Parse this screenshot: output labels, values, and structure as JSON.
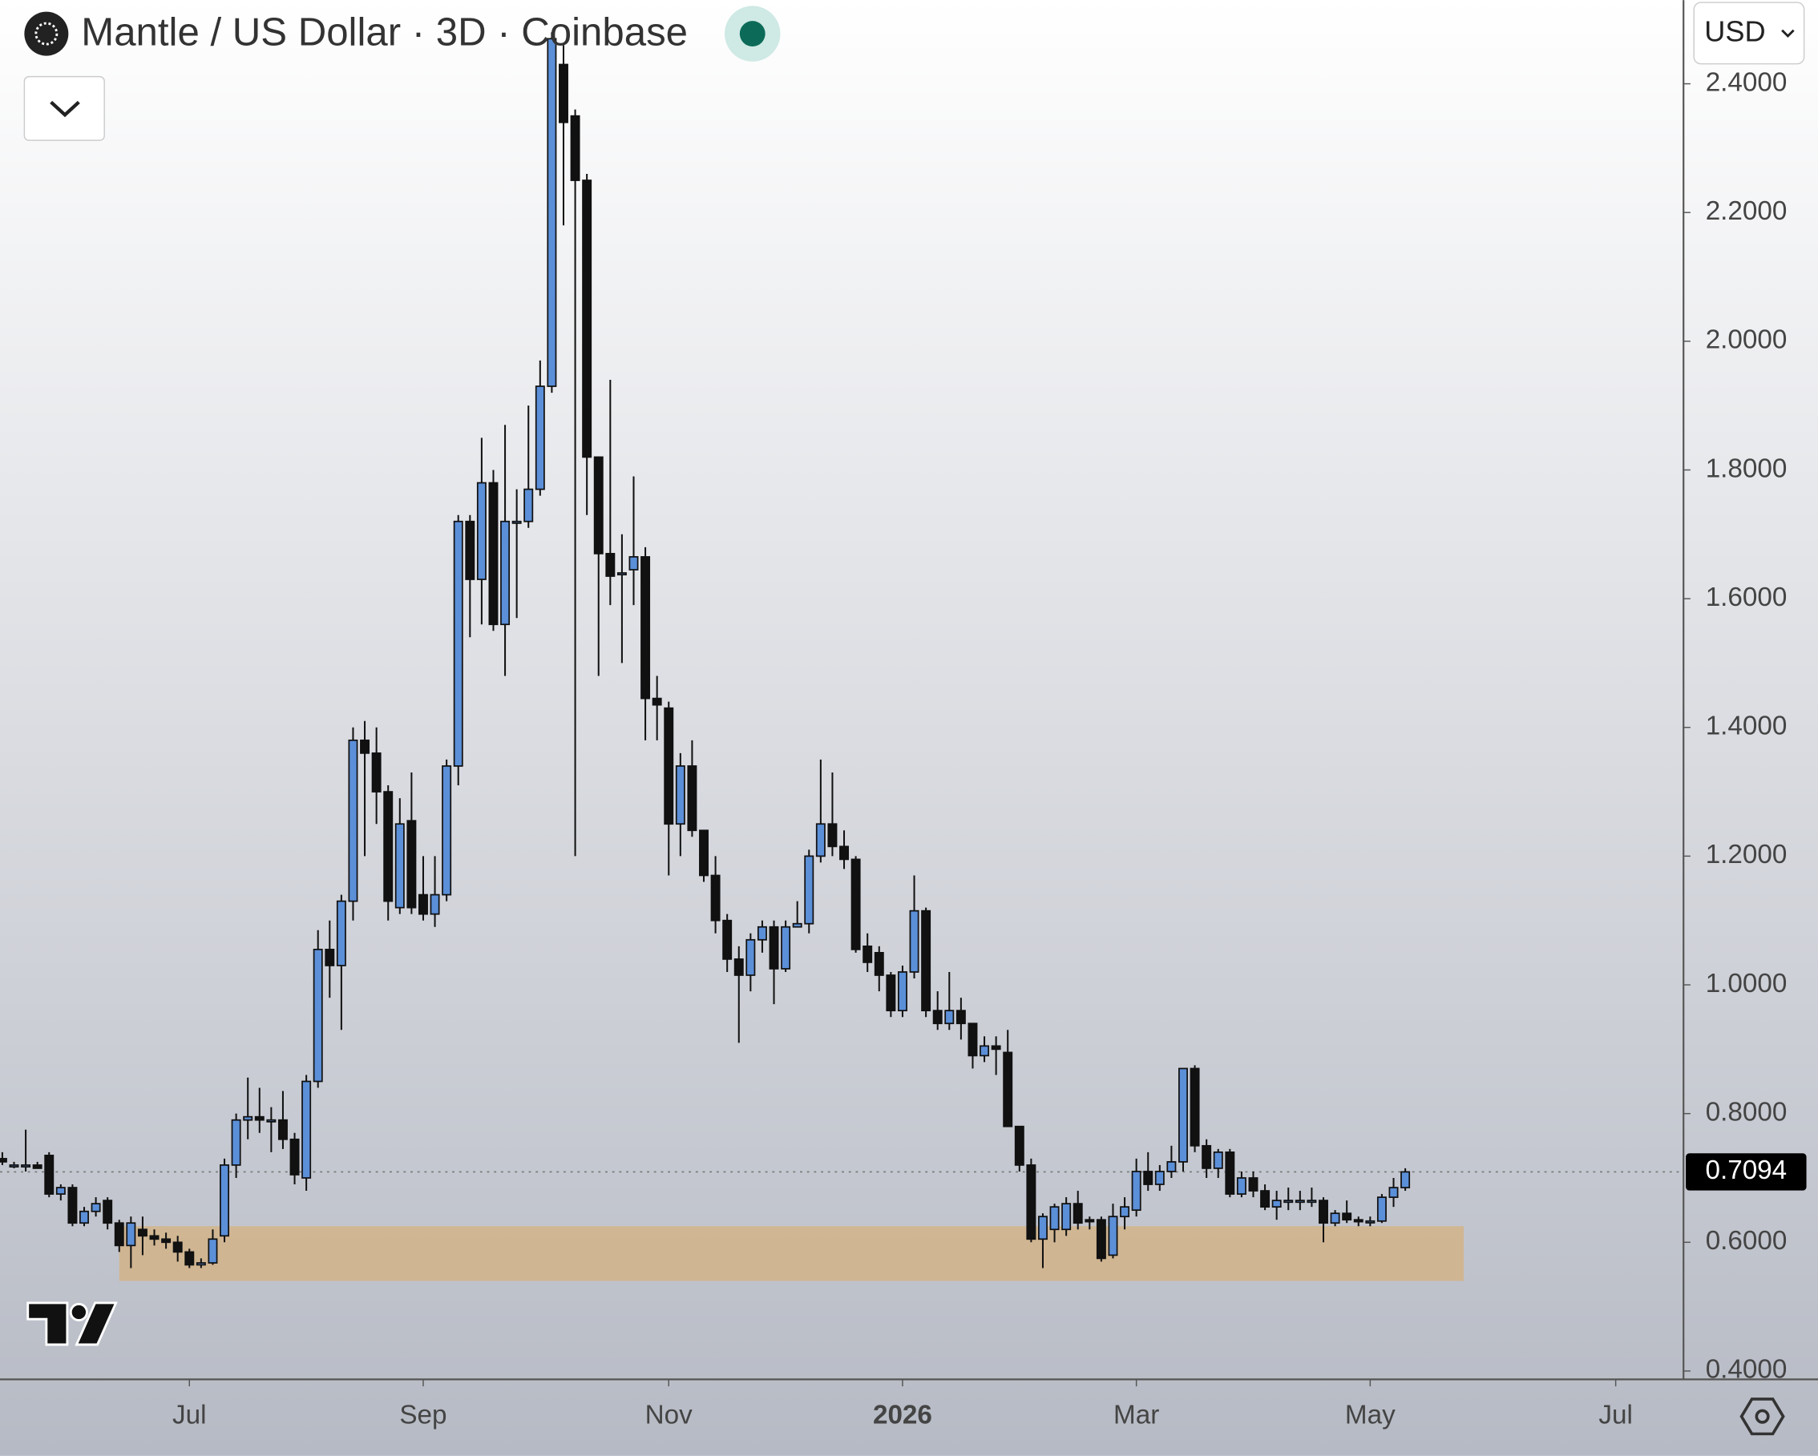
{
  "chart_data": {
    "type": "candlestick",
    "title": "Mantle / US Dollar · 3D · Coinbase",
    "currency": "USD",
    "up_color": "#5b8fd8",
    "down_color": "#111111",
    "open": [
      0.73,
      0.72,
      0.72,
      0.72,
      0.735,
      0.675,
      0.685,
      0.63,
      0.648,
      0.665,
      0.63,
      0.595,
      0.62,
      0.61,
      0.605,
      0.6,
      0.585,
      0.565,
      0.568,
      0.61,
      0.72,
      0.79,
      0.795,
      0.79,
      0.79,
      0.76,
      0.7,
      0.85,
      1.055,
      1.03,
      1.13,
      1.38,
      1.36,
      1.3,
      1.12,
      1.255,
      1.14,
      1.11,
      1.14,
      1.34,
      1.72,
      1.63,
      1.78,
      1.56,
      1.72,
      1.72,
      1.77,
      1.93,
      2.43,
      2.35,
      2.25,
      1.82,
      1.67,
      1.64,
      1.645,
      1.665,
      1.445,
      1.43,
      1.25,
      1.34,
      1.24,
      1.17,
      1.1,
      1.04,
      1.015,
      1.07,
      1.09,
      1.025,
      1.09,
      1.095,
      1.2,
      1.25,
      1.215,
      1.195,
      1.06,
      1.05,
      1.015,
      0.96,
      1.02,
      1.115,
      0.96,
      0.94,
      0.96,
      0.94,
      0.89,
      0.905,
      0.895,
      0.78,
      0.72,
      0.605,
      0.62,
      0.62,
      0.66,
      0.635,
      0.635,
      0.58,
      0.64,
      0.65,
      0.71,
      0.69,
      0.71,
      0.725,
      0.87,
      0.75,
      0.715,
      0.74,
      0.675,
      0.7,
      0.68,
      0.655,
      0.665,
      0.665,
      0.665,
      0.665,
      0.63,
      0.645,
      0.635,
      0.632,
      0.633,
      0.67,
      0.685
    ],
    "high": [
      0.74,
      0.725,
      0.775,
      0.725,
      0.74,
      0.69,
      0.69,
      0.655,
      0.67,
      0.67,
      0.635,
      0.64,
      0.64,
      0.62,
      0.615,
      0.61,
      0.59,
      0.575,
      0.62,
      0.73,
      0.8,
      0.856,
      0.84,
      0.81,
      0.835,
      0.77,
      0.86,
      1.085,
      1.1,
      1.14,
      1.4,
      1.41,
      1.4,
      1.31,
      1.29,
      1.33,
      1.2,
      1.2,
      1.35,
      1.73,
      1.73,
      1.85,
      1.8,
      1.87,
      1.77,
      1.9,
      1.97,
      2.48,
      2.46,
      2.36,
      2.26,
      1.82,
      1.94,
      1.7,
      1.79,
      1.68,
      1.48,
      1.44,
      1.36,
      1.38,
      1.24,
      1.2,
      1.11,
      1.06,
      1.08,
      1.1,
      1.1,
      1.1,
      1.13,
      1.21,
      1.35,
      1.33,
      1.24,
      1.2,
      1.08,
      1.06,
      1.02,
      1.03,
      1.17,
      1.12,
      0.99,
      1.02,
      0.98,
      0.94,
      0.92,
      0.92,
      0.93,
      0.78,
      0.73,
      0.645,
      0.66,
      0.67,
      0.68,
      0.64,
      0.64,
      0.66,
      0.67,
      0.73,
      0.74,
      0.72,
      0.75,
      0.87,
      0.875,
      0.76,
      0.745,
      0.745,
      0.71,
      0.71,
      0.69,
      0.68,
      0.685,
      0.68,
      0.685,
      0.67,
      0.65,
      0.665,
      0.64,
      0.64,
      0.675,
      0.7,
      0.715
    ],
    "low": [
      0.72,
      0.715,
      0.71,
      0.715,
      0.67,
      0.665,
      0.625,
      0.625,
      0.64,
      0.62,
      0.585,
      0.56,
      0.58,
      0.595,
      0.59,
      0.57,
      0.56,
      0.56,
      0.565,
      0.6,
      0.7,
      0.76,
      0.77,
      0.74,
      0.745,
      0.69,
      0.68,
      0.84,
      0.98,
      0.93,
      1.1,
      1.2,
      1.25,
      1.1,
      1.11,
      1.11,
      1.1,
      1.09,
      1.13,
      1.31,
      1.54,
      1.56,
      1.55,
      1.48,
      1.57,
      1.71,
      1.76,
      1.92,
      2.18,
      1.2,
      1.73,
      1.48,
      1.59,
      1.5,
      1.59,
      1.38,
      1.38,
      1.17,
      1.2,
      1.23,
      1.16,
      1.08,
      1.02,
      0.91,
      0.99,
      1.05,
      0.97,
      1.02,
      1.09,
      1.08,
      1.19,
      1.2,
      1.18,
      1.05,
      1.02,
      0.99,
      0.95,
      0.95,
      1.01,
      0.95,
      0.93,
      0.93,
      0.915,
      0.87,
      0.88,
      0.86,
      0.78,
      0.71,
      0.6,
      0.56,
      0.6,
      0.61,
      0.62,
      0.62,
      0.57,
      0.575,
      0.62,
      0.64,
      0.68,
      0.68,
      0.7,
      0.71,
      0.74,
      0.7,
      0.7,
      0.67,
      0.67,
      0.67,
      0.65,
      0.635,
      0.65,
      0.65,
      0.655,
      0.6,
      0.625,
      0.63,
      0.625,
      0.625,
      0.63,
      0.655,
      0.68
    ],
    "close": [
      0.725,
      0.72,
      0.72,
      0.715,
      0.675,
      0.685,
      0.63,
      0.648,
      0.66,
      0.63,
      0.595,
      0.63,
      0.61,
      0.605,
      0.6,
      0.585,
      0.565,
      0.568,
      0.605,
      0.72,
      0.79,
      0.795,
      0.79,
      0.79,
      0.76,
      0.705,
      0.85,
      1.055,
      1.03,
      1.13,
      1.38,
      1.36,
      1.3,
      1.13,
      1.25,
      1.12,
      1.11,
      1.14,
      1.34,
      1.72,
      1.63,
      1.78,
      1.56,
      1.72,
      1.72,
      1.77,
      1.93,
      2.47,
      2.34,
      2.25,
      1.82,
      1.67,
      1.635,
      1.64,
      1.665,
      1.445,
      1.435,
      1.25,
      1.34,
      1.24,
      1.17,
      1.1,
      1.04,
      1.015,
      1.07,
      1.09,
      1.025,
      1.09,
      1.095,
      1.2,
      1.25,
      1.215,
      1.195,
      1.055,
      1.035,
      1.015,
      0.96,
      1.02,
      1.115,
      0.96,
      0.94,
      0.96,
      0.94,
      0.89,
      0.905,
      0.9,
      0.78,
      0.72,
      0.605,
      0.64,
      0.655,
      0.66,
      0.63,
      0.632,
      0.575,
      0.64,
      0.655,
      0.71,
      0.69,
      0.71,
      0.725,
      0.87,
      0.75,
      0.715,
      0.74,
      0.675,
      0.7,
      0.68,
      0.655,
      0.665,
      0.665,
      0.665,
      0.665,
      0.63,
      0.645,
      0.635,
      0.632,
      0.633,
      0.67,
      0.685,
      0.7094
    ],
    "last_price": 0.7094,
    "zone": {
      "from": 10,
      "to": 125,
      "low": 0.54,
      "high": 0.625,
      "color": "#d2b48c"
    },
    "xlim": [
      -0.2,
      143.8
    ],
    "ylim": [
      0.387,
      2.53
    ],
    "yticks": [
      {
        "value": 0.4,
        "label": "0.4000"
      },
      {
        "value": 0.6,
        "label": "0.6000"
      },
      {
        "value": 0.8,
        "label": "0.8000"
      },
      {
        "value": 1.0,
        "label": "1.0000"
      },
      {
        "value": 1.2,
        "label": "1.2000"
      },
      {
        "value": 1.4,
        "label": "1.4000"
      },
      {
        "value": 1.6,
        "label": "1.6000"
      },
      {
        "value": 1.8,
        "label": "1.8000"
      },
      {
        "value": 2.0,
        "label": "2.0000"
      },
      {
        "value": 2.2,
        "label": "2.2000"
      },
      {
        "value": 2.4,
        "label": "2.4000"
      }
    ],
    "xticks": [
      {
        "value": 16,
        "label": "Jul"
      },
      {
        "value": 36,
        "label": "Sep"
      },
      {
        "value": 57,
        "label": "Nov"
      },
      {
        "value": 77,
        "label": "2026"
      },
      {
        "value": 97,
        "label": "Mar"
      },
      {
        "value": 117,
        "label": "May"
      },
      {
        "value": 138,
        "label": "Jul"
      }
    ]
  }
}
